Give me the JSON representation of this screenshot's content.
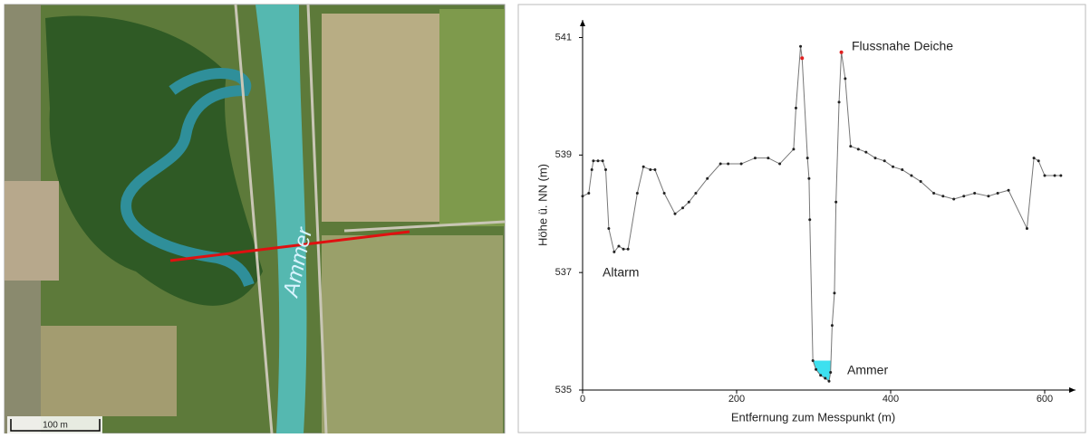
{
  "map": {
    "river_label": "Ammer",
    "scale_label": "100 m"
  },
  "chart_data": {
    "type": "line",
    "x_label": "Entfernung zum Messpunkt (m)",
    "y_label": "Höhe ü. NN (m)",
    "annotations": [
      "Flussnahe Deiche",
      "Altarm",
      "Ammer"
    ],
    "xlim": [
      0,
      640
    ],
    "ylim": [
      535,
      541.3
    ],
    "xticks": [
      0,
      200,
      400,
      600
    ],
    "yticks": [
      535,
      537,
      539,
      541
    ],
    "water": {
      "level": 535.5,
      "color": "#3de0ef"
    },
    "series": [
      {
        "color": "#555555",
        "x": [
          0,
          8,
          12,
          14,
          20,
          26,
          30,
          34,
          41,
          47,
          53,
          59,
          71,
          79,
          88,
          94,
          106,
          120,
          130,
          138,
          147,
          162,
          179,
          189,
          206,
          224,
          241,
          256,
          274,
          277,
          283,
          285,
          292,
          294,
          295,
          299,
          303,
          309,
          315,
          320,
          322,
          324,
          327,
          329,
          333,
          336,
          341,
          348,
          358,
          368,
          380,
          392,
          403,
          415,
          427,
          439,
          456,
          468,
          482,
          495,
          509,
          527,
          539,
          553,
          577,
          586,
          592,
          600,
          613,
          621
        ],
        "values": [
          538.3,
          538.35,
          538.75,
          538.9,
          538.9,
          538.9,
          538.75,
          537.75,
          537.35,
          537.45,
          537.4,
          537.4,
          538.35,
          538.8,
          538.75,
          538.75,
          538.35,
          538.0,
          538.1,
          538.2,
          538.35,
          538.6,
          538.85,
          538.85,
          538.85,
          538.95,
          538.95,
          538.85,
          539.1,
          539.8,
          540.85,
          540.65,
          538.95,
          538.6,
          537.9,
          535.5,
          535.35,
          535.25,
          535.2,
          535.15,
          535.3,
          536.1,
          536.65,
          538.2,
          539.9,
          540.75,
          540.3,
          539.15,
          539.1,
          539.05,
          538.95,
          538.9,
          538.8,
          538.75,
          538.65,
          538.55,
          538.35,
          538.3,
          538.25,
          538.3,
          538.35,
          538.3,
          538.35,
          538.4,
          537.75,
          538.95,
          538.9,
          538.65,
          538.65,
          538.65
        ]
      },
      {
        "color": "#e02020",
        "x": [
          285,
          336
        ],
        "values": [
          540.65,
          540.75
        ]
      }
    ]
  }
}
